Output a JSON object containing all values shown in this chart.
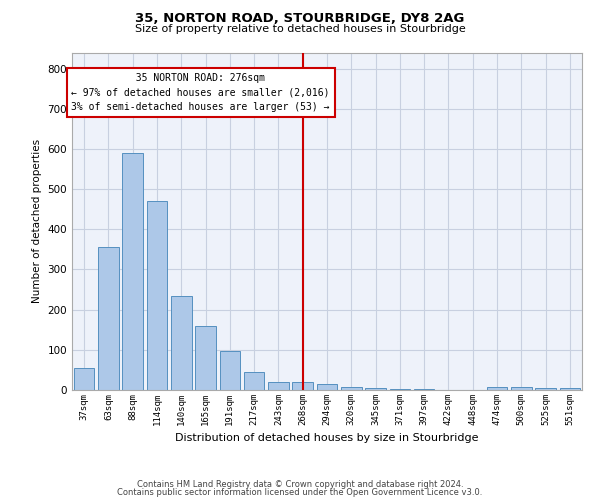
{
  "title1": "35, NORTON ROAD, STOURBRIDGE, DY8 2AG",
  "title2": "Size of property relative to detached houses in Stourbridge",
  "xlabel": "Distribution of detached houses by size in Stourbridge",
  "ylabel": "Number of detached properties",
  "categories": [
    "37sqm",
    "63sqm",
    "88sqm",
    "114sqm",
    "140sqm",
    "165sqm",
    "191sqm",
    "217sqm",
    "243sqm",
    "268sqm",
    "294sqm",
    "320sqm",
    "345sqm",
    "371sqm",
    "397sqm",
    "422sqm",
    "448sqm",
    "474sqm",
    "500sqm",
    "525sqm",
    "551sqm"
  ],
  "values": [
    55,
    355,
    590,
    470,
    235,
    160,
    96,
    45,
    20,
    20,
    16,
    8,
    5,
    3,
    2,
    1,
    0,
    8,
    8,
    5,
    5
  ],
  "bar_color": "#adc8e8",
  "bar_edge_color": "#5590c0",
  "grid_color": "#c8d0e0",
  "bg_color": "#eef2fa",
  "vline_color": "#cc0000",
  "annotation_text": "  35 NORTON ROAD: 276sqm  \n← 97% of detached houses are smaller (2,016)\n3% of semi-detached houses are larger (53) →",
  "annotation_box_color": "#cc0000",
  "footer1": "Contains HM Land Registry data © Crown copyright and database right 2024.",
  "footer2": "Contains public sector information licensed under the Open Government Licence v3.0.",
  "ylim": [
    0,
    840
  ],
  "yticks": [
    0,
    100,
    200,
    300,
    400,
    500,
    600,
    700,
    800
  ]
}
